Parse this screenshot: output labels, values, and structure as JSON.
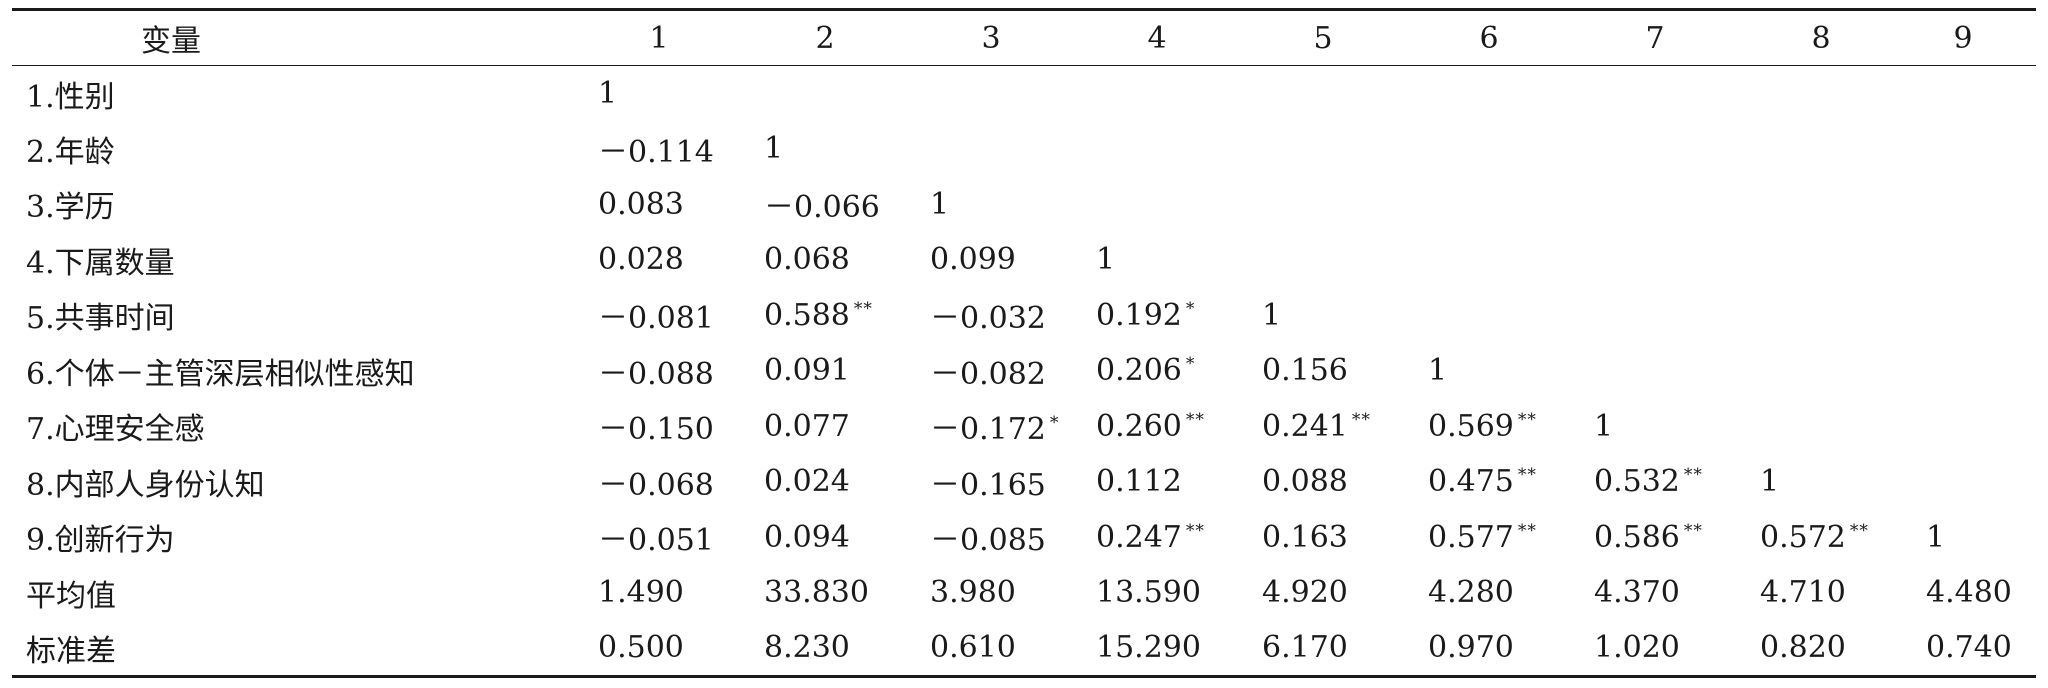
{
  "table": {
    "headers": [
      "变量",
      "1",
      "2",
      "3",
      "4",
      "5",
      "6",
      "7",
      "8",
      "9"
    ],
    "rows": [
      {
        "label": "1.性别",
        "cells": [
          {
            "v": "1",
            "s": ""
          },
          {
            "v": "",
            "s": ""
          },
          {
            "v": "",
            "s": ""
          },
          {
            "v": "",
            "s": ""
          },
          {
            "v": "",
            "s": ""
          },
          {
            "v": "",
            "s": ""
          },
          {
            "v": "",
            "s": ""
          },
          {
            "v": "",
            "s": ""
          },
          {
            "v": "",
            "s": ""
          }
        ]
      },
      {
        "label": "2.年龄",
        "cells": [
          {
            "v": "－0.114",
            "s": ""
          },
          {
            "v": "1",
            "s": ""
          },
          {
            "v": "",
            "s": ""
          },
          {
            "v": "",
            "s": ""
          },
          {
            "v": "",
            "s": ""
          },
          {
            "v": "",
            "s": ""
          },
          {
            "v": "",
            "s": ""
          },
          {
            "v": "",
            "s": ""
          },
          {
            "v": "",
            "s": ""
          }
        ]
      },
      {
        "label": "3.学历",
        "cells": [
          {
            "v": "0.083",
            "s": ""
          },
          {
            "v": "－0.066",
            "s": ""
          },
          {
            "v": "1",
            "s": ""
          },
          {
            "v": "",
            "s": ""
          },
          {
            "v": "",
            "s": ""
          },
          {
            "v": "",
            "s": ""
          },
          {
            "v": "",
            "s": ""
          },
          {
            "v": "",
            "s": ""
          },
          {
            "v": "",
            "s": ""
          }
        ]
      },
      {
        "label": "4.下属数量",
        "cells": [
          {
            "v": "0.028",
            "s": ""
          },
          {
            "v": "0.068",
            "s": ""
          },
          {
            "v": "0.099",
            "s": ""
          },
          {
            "v": "1",
            "s": ""
          },
          {
            "v": "",
            "s": ""
          },
          {
            "v": "",
            "s": ""
          },
          {
            "v": "",
            "s": ""
          },
          {
            "v": "",
            "s": ""
          },
          {
            "v": "",
            "s": ""
          }
        ]
      },
      {
        "label": "5.共事时间",
        "cells": [
          {
            "v": "－0.081",
            "s": ""
          },
          {
            "v": "0.588",
            "s": "**"
          },
          {
            "v": "－0.032",
            "s": ""
          },
          {
            "v": "0.192",
            "s": "*"
          },
          {
            "v": "1",
            "s": ""
          },
          {
            "v": "",
            "s": ""
          },
          {
            "v": "",
            "s": ""
          },
          {
            "v": "",
            "s": ""
          },
          {
            "v": "",
            "s": ""
          }
        ]
      },
      {
        "label": "6.个体－主管深层相似性感知",
        "cells": [
          {
            "v": "－0.088",
            "s": ""
          },
          {
            "v": "0.091",
            "s": ""
          },
          {
            "v": "－0.082",
            "s": ""
          },
          {
            "v": "0.206",
            "s": "*"
          },
          {
            "v": "0.156",
            "s": ""
          },
          {
            "v": "1",
            "s": ""
          },
          {
            "v": "",
            "s": ""
          },
          {
            "v": "",
            "s": ""
          },
          {
            "v": "",
            "s": ""
          }
        ]
      },
      {
        "label": "7.心理安全感",
        "cells": [
          {
            "v": "－0.150",
            "s": ""
          },
          {
            "v": "0.077",
            "s": ""
          },
          {
            "v": "－0.172",
            "s": "*"
          },
          {
            "v": "0.260",
            "s": "**"
          },
          {
            "v": "0.241",
            "s": "**"
          },
          {
            "v": "0.569",
            "s": "**"
          },
          {
            "v": "1",
            "s": ""
          },
          {
            "v": "",
            "s": ""
          },
          {
            "v": "",
            "s": ""
          }
        ]
      },
      {
        "label": "8.内部人身份认知",
        "cells": [
          {
            "v": "－0.068",
            "s": ""
          },
          {
            "v": "0.024",
            "s": ""
          },
          {
            "v": "－0.165",
            "s": ""
          },
          {
            "v": "0.112",
            "s": ""
          },
          {
            "v": "0.088",
            "s": ""
          },
          {
            "v": "0.475",
            "s": "**"
          },
          {
            "v": "0.532",
            "s": "**"
          },
          {
            "v": "1",
            "s": ""
          },
          {
            "v": "",
            "s": ""
          }
        ]
      },
      {
        "label": "9.创新行为",
        "cells": [
          {
            "v": "－0.051",
            "s": ""
          },
          {
            "v": "0.094",
            "s": ""
          },
          {
            "v": "－0.085",
            "s": ""
          },
          {
            "v": "0.247",
            "s": "**"
          },
          {
            "v": "0.163",
            "s": ""
          },
          {
            "v": "0.577",
            "s": "**"
          },
          {
            "v": "0.586",
            "s": "**"
          },
          {
            "v": "0.572",
            "s": "**"
          },
          {
            "v": "1",
            "s": ""
          }
        ]
      },
      {
        "label": "平均值",
        "cells": [
          {
            "v": "1.490",
            "s": ""
          },
          {
            "v": "33.830",
            "s": ""
          },
          {
            "v": "3.980",
            "s": ""
          },
          {
            "v": "13.590",
            "s": ""
          },
          {
            "v": "4.920",
            "s": ""
          },
          {
            "v": "4.280",
            "s": ""
          },
          {
            "v": "4.370",
            "s": ""
          },
          {
            "v": "4.710",
            "s": ""
          },
          {
            "v": "4.480",
            "s": ""
          }
        ]
      },
      {
        "label": "标准差",
        "cells": [
          {
            "v": "0.500",
            "s": ""
          },
          {
            "v": "8.230",
            "s": ""
          },
          {
            "v": "0.610",
            "s": ""
          },
          {
            "v": "15.290",
            "s": ""
          },
          {
            "v": "6.170",
            "s": ""
          },
          {
            "v": "0.970",
            "s": ""
          },
          {
            "v": "1.020",
            "s": ""
          },
          {
            "v": "0.820",
            "s": ""
          },
          {
            "v": "0.740",
            "s": ""
          }
        ]
      }
    ]
  }
}
